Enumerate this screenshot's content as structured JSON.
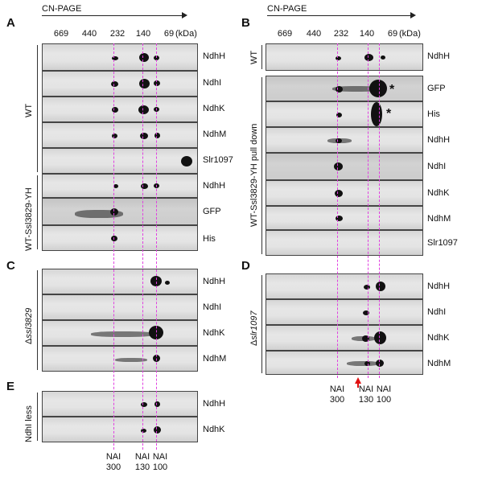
{
  "axis": {
    "title": "CN-PAGE",
    "ticks": [
      "669",
      "440",
      "232",
      "140",
      "69"
    ],
    "unit": "(kDa)"
  },
  "panels": {
    "A": {
      "label": "A",
      "groups": [
        {
          "label": "WT",
          "strips": [
            "NdhH",
            "NdhI",
            "NdhK",
            "NdhM",
            "Slr1097"
          ]
        },
        {
          "label": "WT-Ssl3829-YH",
          "strips": [
            "NdhH",
            "GFP",
            "His"
          ]
        }
      ]
    },
    "B": {
      "label": "B",
      "groups": [
        {
          "label": "WT",
          "strips": [
            "NdhH"
          ]
        },
        {
          "label": "WT-Ssl3829-YH pull down",
          "strips": [
            "GFP",
            "His",
            "NdhH",
            "NdhI",
            "NdhK",
            "NdhM",
            "Slr1097"
          ]
        }
      ],
      "asterisks": [
        "*",
        "*"
      ]
    },
    "C": {
      "label": "C",
      "group_prefix": "Δ",
      "group_label": "ssl3829",
      "strips": [
        "NdhH",
        "NdhI",
        "NdhK",
        "NdhM"
      ]
    },
    "D": {
      "label": "D",
      "group_prefix": "Δ",
      "group_label": "slr1097",
      "strips": [
        "NdhH",
        "NdhI",
        "NdhK",
        "NdhM"
      ]
    },
    "E": {
      "label": "E",
      "group_label": "NdhI less",
      "strips": [
        "NdhH",
        "NdhK"
      ]
    }
  },
  "nai_labels": [
    {
      "top": "NAI",
      "bottom": "300"
    },
    {
      "top": "NAI",
      "bottom": "130"
    },
    {
      "top": "NAI",
      "bottom": "100"
    }
  ],
  "colors": {
    "guide_line": "#e040e0",
    "arrow": "#e01010"
  }
}
